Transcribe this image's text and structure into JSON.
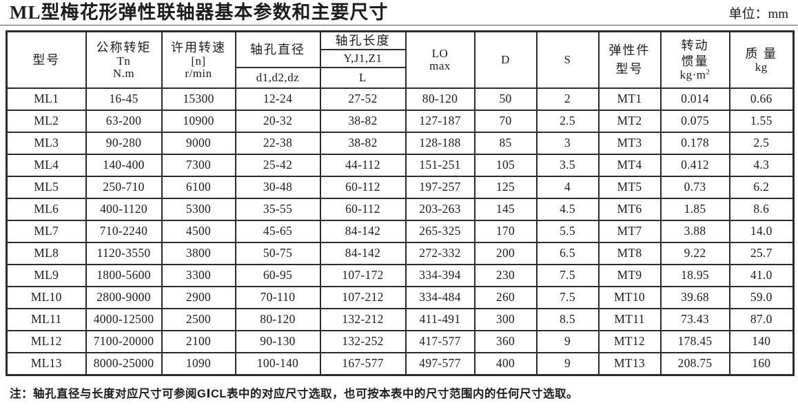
{
  "page": {
    "title": "ML型梅花形弹性联轴器基本参数和主要尺寸",
    "unit_label": "单位：mm",
    "note": "注：轴孔直径与长度对应尺寸可参阅GⅠCL表中的对应尺寸选取，也可按本表中的尺寸范围内的任何尺寸选取。"
  },
  "table": {
    "headers": {
      "model": "型号",
      "torque_cn": "公称转矩",
      "torque_symbol": "Tn",
      "torque_unit": "N.m",
      "speed_cn": "许用转速",
      "speed_symbol": "[n]",
      "speed_unit": "r/min",
      "bore_diameter_cn": "轴孔直径",
      "bore_diameter_symbols": "d1,d2,dz",
      "bore_length_cn": "轴孔长度",
      "bore_length_types": "Y,J1,Z1",
      "bore_length_symbol": "L",
      "lo_symbol": "LO",
      "lo_sub": "max",
      "d_symbol": "D",
      "s_symbol": "S",
      "elastic_cn1": "弹性件",
      "elastic_cn2": "型号",
      "inertia_cn1": "转动",
      "inertia_cn2": "惯量",
      "inertia_unit_base": "kg·m",
      "inertia_unit_sup": "2",
      "mass_cn": "质 量",
      "mass_unit": "kg"
    },
    "column_keys": [
      "model",
      "torque",
      "speed",
      "bore-diameter",
      "bore-length",
      "lo-max",
      "d",
      "s",
      "elastic-model",
      "inertia",
      "mass"
    ],
    "rows": [
      [
        "ML1",
        "16-45",
        "15300",
        "12-24",
        "27-52",
        "80-120",
        "50",
        "2",
        "MT1",
        "0.014",
        "0.66"
      ],
      [
        "ML2",
        "63-200",
        "10900",
        "20-32",
        "38-82",
        "127-187",
        "70",
        "2.5",
        "MT2",
        "0.075",
        "1.55"
      ],
      [
        "ML3",
        "90-280",
        "9000",
        "22-38",
        "38-82",
        "128-188",
        "85",
        "3",
        "MT3",
        "0.178",
        "2.5"
      ],
      [
        "ML4",
        "140-400",
        "7300",
        "25-42",
        "44-112",
        "151-251",
        "105",
        "3.5",
        "MT4",
        "0.412",
        "4.3"
      ],
      [
        "ML5",
        "250-710",
        "6100",
        "30-48",
        "60-112",
        "197-257",
        "125",
        "4",
        "MT5",
        "0.73",
        "6.2"
      ],
      [
        "ML6",
        "400-1120",
        "5300",
        "35-55",
        "60-112",
        "203-263",
        "145",
        "4.5",
        "MT6",
        "1.85",
        "8.6"
      ],
      [
        "ML7",
        "710-2240",
        "4500",
        "45-65",
        "84-142",
        "265-325",
        "170",
        "5.5",
        "MT7",
        "3.88",
        "14.0"
      ],
      [
        "ML8",
        "1120-3550",
        "3800",
        "50-75",
        "84-142",
        "272-332",
        "200",
        "6.5",
        "MT8",
        "9.22",
        "25.7"
      ],
      [
        "ML9",
        "1800-5600",
        "3300",
        "60-95",
        "107-172",
        "334-394",
        "230",
        "7.5",
        "MT9",
        "18.95",
        "41.0"
      ],
      [
        "ML10",
        "2800-9000",
        "2900",
        "70-110",
        "107-212",
        "334-484",
        "260",
        "7.5",
        "MT10",
        "39.68",
        "59.0"
      ],
      [
        "ML11",
        "4000-12500",
        "2500",
        "80-120",
        "132-212",
        "411-491",
        "300",
        "8.5",
        "MT11",
        "73.43",
        "87.0"
      ],
      [
        "ML12",
        "7100-20000",
        "2100",
        "90-130",
        "132-252",
        "417-577",
        "360",
        "9",
        "MT12",
        "178.45",
        "140"
      ],
      [
        "ML13",
        "8000-25000",
        "1090",
        "100-140",
        "167-577",
        "497-577",
        "400",
        "9",
        "MT13",
        "208.75",
        "160"
      ]
    ]
  }
}
